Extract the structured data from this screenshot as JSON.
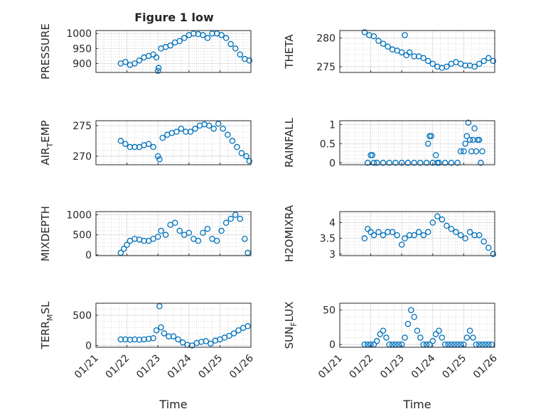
{
  "figure": {
    "title": "Figure 1 low",
    "marker_color": "#0072BD",
    "axis_color": "#262626",
    "grid_color": "#b4b4b4"
  },
  "chart_data": [
    {
      "type": "scatter",
      "ylabel": "PRESSURE",
      "ylim": [
        870,
        1010
      ],
      "yticks": [
        900,
        950,
        1000
      ],
      "xlim": [
        "2021-01-21",
        "2021-01-26"
      ],
      "xticks": [
        "01/21",
        "01/22",
        "01/23",
        "01/24",
        "01/25",
        "01/26"
      ],
      "x": [
        21.8,
        21.95,
        22.1,
        22.25,
        22.4,
        22.55,
        22.7,
        22.85,
        22.95,
        23.0,
        23.02,
        23.1,
        23.25,
        23.4,
        23.55,
        23.7,
        23.85,
        24.0,
        24.15,
        24.3,
        24.45,
        24.6,
        24.75,
        24.9,
        25.05,
        25.2,
        25.35,
        25.5,
        25.65,
        25.8,
        25.95
      ],
      "y": [
        900,
        905,
        895,
        900,
        910,
        920,
        925,
        930,
        920,
        875,
        885,
        950,
        955,
        960,
        970,
        975,
        985,
        995,
        1000,
        998,
        995,
        985,
        1000,
        1000,
        995,
        985,
        965,
        950,
        930,
        915,
        910
      ]
    },
    {
      "type": "scatter",
      "ylabel": "THETA",
      "ylim": [
        274,
        281.3
      ],
      "yticks": [
        275,
        280
      ],
      "xlim": [
        "2021-01-21",
        "2021-01-26"
      ],
      "xticks": [
        "01/21",
        "01/22",
        "01/23",
        "01/24",
        "01/25",
        "01/26"
      ],
      "x": [
        21.8,
        21.95,
        22.1,
        22.25,
        22.4,
        22.55,
        22.7,
        22.85,
        23.0,
        23.1,
        23.15,
        23.25,
        23.4,
        23.55,
        23.7,
        23.85,
        24.0,
        24.15,
        24.3,
        24.45,
        24.6,
        24.75,
        24.9,
        25.05,
        25.2,
        25.35,
        25.5,
        25.65,
        25.8,
        25.95
      ],
      "y": [
        281,
        280.5,
        280.3,
        279.5,
        279,
        278.5,
        278,
        277.8,
        277.5,
        280.5,
        277,
        277.5,
        276.8,
        276.8,
        276.5,
        276,
        275.5,
        275,
        274.8,
        275,
        275.5,
        275.8,
        275.5,
        275.2,
        275.2,
        275,
        275.5,
        276,
        276.5,
        276
      ]
    },
    {
      "type": "scatter",
      "ylabel": "AIR_TEMP",
      "ylim": [
        268.6,
        275.8
      ],
      "yticks": [
        270,
        275
      ],
      "xlim": [
        "2021-01-21",
        "2021-01-26"
      ],
      "xticks": [
        "01/21",
        "01/22",
        "01/23",
        "01/24",
        "01/25",
        "01/26"
      ],
      "x": [
        21.8,
        21.95,
        22.1,
        22.25,
        22.4,
        22.55,
        22.7,
        22.85,
        23.0,
        23.05,
        23.15,
        23.3,
        23.45,
        23.6,
        23.75,
        23.9,
        24.05,
        24.2,
        24.35,
        24.5,
        24.65,
        24.8,
        24.95,
        25.1,
        25.25,
        25.4,
        25.55,
        25.7,
        25.85,
        25.95
      ],
      "y": [
        272.5,
        272,
        271.5,
        271.5,
        271.5,
        271.8,
        272,
        271.5,
        270,
        269.5,
        273,
        273.5,
        273.8,
        274,
        274.5,
        274,
        274,
        274.5,
        275,
        275.2,
        275,
        274.5,
        275.3,
        274.5,
        273.5,
        272.5,
        271.5,
        270.5,
        270,
        269.2
      ]
    },
    {
      "type": "scatter",
      "ylabel": "RAINFALL",
      "ylim": [
        -0.05,
        1.1
      ],
      "yticks": [
        0,
        0.5,
        1
      ],
      "xlim": [
        "2021-01-21",
        "2021-01-26"
      ],
      "xticks": [
        "01/21",
        "01/22",
        "01/23",
        "01/24",
        "01/25",
        "01/26"
      ],
      "x": [
        21.9,
        22.0,
        22.05,
        22.1,
        22.2,
        22.4,
        22.6,
        22.8,
        23.0,
        23.2,
        23.4,
        23.6,
        23.8,
        23.85,
        23.9,
        23.95,
        24.0,
        24.1,
        24.15,
        24.2,
        24.4,
        24.6,
        24.8,
        24.9,
        25.0,
        25.05,
        25.1,
        25.15,
        25.2,
        25.25,
        25.3,
        25.35,
        25.4,
        25.45,
        25.5,
        25.55,
        25.6
      ],
      "y": [
        0,
        0.2,
        0.2,
        0,
        0,
        0,
        0,
        0,
        0,
        0,
        0,
        0,
        0,
        0.5,
        0.7,
        0.7,
        0,
        0.2,
        0,
        0,
        0,
        0,
        0,
        0.3,
        0.3,
        0.5,
        0.7,
        1.05,
        0.6,
        0.3,
        0.6,
        0.9,
        0.3,
        0.6,
        0.6,
        0,
        0.3
      ]
    },
    {
      "type": "scatter",
      "ylabel": "MIXDEPTH",
      "ylim": [
        -20,
        1080
      ],
      "yticks": [
        0,
        500,
        1000
      ],
      "xlim": [
        "2021-01-21",
        "2021-01-26"
      ],
      "xticks": [
        "01/21",
        "01/22",
        "01/23",
        "01/24",
        "01/25",
        "01/26"
      ],
      "x": [
        21.8,
        21.9,
        22.0,
        22.1,
        22.25,
        22.4,
        22.55,
        22.7,
        22.85,
        23.0,
        23.1,
        23.25,
        23.4,
        23.55,
        23.7,
        23.85,
        24.0,
        24.15,
        24.3,
        24.45,
        24.6,
        24.75,
        24.9,
        25.05,
        25.2,
        25.35,
        25.5,
        25.65,
        25.8,
        25.9
      ],
      "y": [
        50,
        150,
        250,
        350,
        400,
        380,
        350,
        350,
        400,
        450,
        600,
        500,
        750,
        800,
        600,
        500,
        550,
        400,
        350,
        550,
        650,
        400,
        350,
        600,
        800,
        900,
        1000,
        900,
        400,
        50
      ]
    },
    {
      "type": "scatter",
      "ylabel": "H2OMIXRA",
      "ylim": [
        2.95,
        4.35
      ],
      "yticks": [
        3,
        3.5,
        4
      ],
      "xlim": [
        "2021-01-21",
        "2021-01-26"
      ],
      "xticks": [
        "01/21",
        "01/22",
        "01/23",
        "01/24",
        "01/25",
        "01/26"
      ],
      "x": [
        21.8,
        21.9,
        22.0,
        22.1,
        22.25,
        22.4,
        22.55,
        22.7,
        22.85,
        23.0,
        23.1,
        23.25,
        23.4,
        23.55,
        23.7,
        23.85,
        24.0,
        24.15,
        24.3,
        24.45,
        24.6,
        24.75,
        24.9,
        25.05,
        25.2,
        25.35,
        25.5,
        25.65,
        25.8,
        25.95
      ],
      "y": [
        3.5,
        3.8,
        3.7,
        3.6,
        3.7,
        3.6,
        3.7,
        3.7,
        3.6,
        3.3,
        3.5,
        3.6,
        3.6,
        3.7,
        3.6,
        3.7,
        4.0,
        4.2,
        4.1,
        3.9,
        3.8,
        3.7,
        3.6,
        3.5,
        3.7,
        3.6,
        3.6,
        3.4,
        3.2,
        3.0
      ]
    },
    {
      "type": "scatter",
      "ylabel": "TERR_MSL",
      "ylim": [
        -30,
        700
      ],
      "yticks": [
        0,
        500
      ],
      "xlim": [
        "2021-01-21",
        "2021-01-26"
      ],
      "xticks": [
        "01/21",
        "01/22",
        "01/23",
        "01/24",
        "01/25",
        "01/26"
      ],
      "x": [
        21.8,
        21.95,
        22.1,
        22.25,
        22.4,
        22.55,
        22.7,
        22.85,
        22.95,
        23.05,
        23.1,
        23.2,
        23.35,
        23.5,
        23.65,
        23.8,
        23.95,
        24.1,
        24.25,
        24.4,
        24.55,
        24.7,
        24.85,
        25.0,
        25.15,
        25.3,
        25.45,
        25.6,
        25.75,
        25.9
      ],
      "y": [
        100,
        100,
        95,
        100,
        95,
        100,
        110,
        120,
        250,
        650,
        300,
        200,
        150,
        150,
        100,
        50,
        10,
        0,
        40,
        60,
        70,
        30,
        80,
        100,
        130,
        160,
        200,
        250,
        290,
        320
      ]
    },
    {
      "type": "scatter",
      "ylabel": "SUN_FLUX",
      "ylim": [
        -4,
        60
      ],
      "yticks": [
        0,
        50
      ],
      "xlim": [
        "2021-01-21",
        "2021-01-26"
      ],
      "xticks": [
        "01/21",
        "01/22",
        "01/23",
        "01/24",
        "01/25",
        "01/26"
      ],
      "x": [
        21.8,
        21.9,
        22.0,
        22.1,
        22.2,
        22.3,
        22.4,
        22.5,
        22.6,
        22.7,
        22.8,
        22.9,
        23.0,
        23.1,
        23.2,
        23.3,
        23.4,
        23.5,
        23.6,
        23.7,
        23.8,
        23.9,
        24.0,
        24.1,
        24.2,
        24.3,
        24.4,
        24.5,
        24.6,
        24.7,
        24.8,
        24.9,
        25.0,
        25.1,
        25.2,
        25.3,
        25.4,
        25.5,
        25.6,
        25.7,
        25.8,
        25.9
      ],
      "y": [
        0,
        0,
        0,
        0,
        5,
        15,
        20,
        10,
        0,
        0,
        0,
        0,
        0,
        10,
        30,
        50,
        40,
        20,
        10,
        0,
        0,
        0,
        5,
        15,
        20,
        10,
        0,
        0,
        0,
        0,
        0,
        0,
        0,
        10,
        20,
        10,
        0,
        0,
        0,
        0,
        0,
        0
      ]
    }
  ]
}
